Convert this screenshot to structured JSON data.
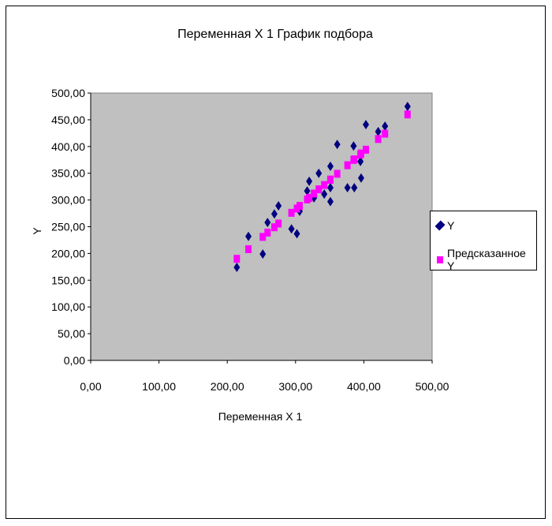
{
  "chart_data": {
    "type": "scatter",
    "title": "Переменная X 1 График подбора",
    "xlabel": "Переменная X 1",
    "ylabel": "Y",
    "xlim": [
      0,
      500
    ],
    "ylim": [
      0,
      500
    ],
    "xticks": [
      "0,00",
      "100,00",
      "200,00",
      "300,00",
      "400,00",
      "500,00"
    ],
    "yticks": [
      "0,00",
      "50,00",
      "100,00",
      "150,00",
      "200,00",
      "250,00",
      "300,00",
      "350,00",
      "400,00",
      "450,00",
      "500,00"
    ],
    "grid": false,
    "legend_position": "right",
    "x": [
      214,
      231,
      252,
      259,
      269,
      275,
      294,
      302,
      306,
      317,
      320,
      327,
      334,
      342,
      351,
      351,
      351,
      361,
      376,
      386,
      385,
      395,
      396,
      403,
      421,
      431,
      464
    ],
    "series": [
      {
        "name": "Y",
        "color": "#000080",
        "marker": "diamond",
        "values": [
          174,
          232,
          199,
          258,
          274,
          289,
          246,
          237,
          279,
          317,
          335,
          304,
          350,
          311,
          363,
          323,
          297,
          404,
          323,
          323,
          401,
          372,
          341,
          441,
          428,
          438,
          475
        ]
      },
      {
        "name": "Предсказанное Y",
        "color": "#ff00ff",
        "marker": "square",
        "values": [
          190,
          208,
          231,
          239,
          249,
          256,
          276,
          284,
          289,
          301,
          304,
          312,
          320,
          328,
          338,
          338,
          338,
          349,
          365,
          376,
          375,
          385,
          387,
          394,
          414,
          424,
          460
        ]
      }
    ]
  }
}
